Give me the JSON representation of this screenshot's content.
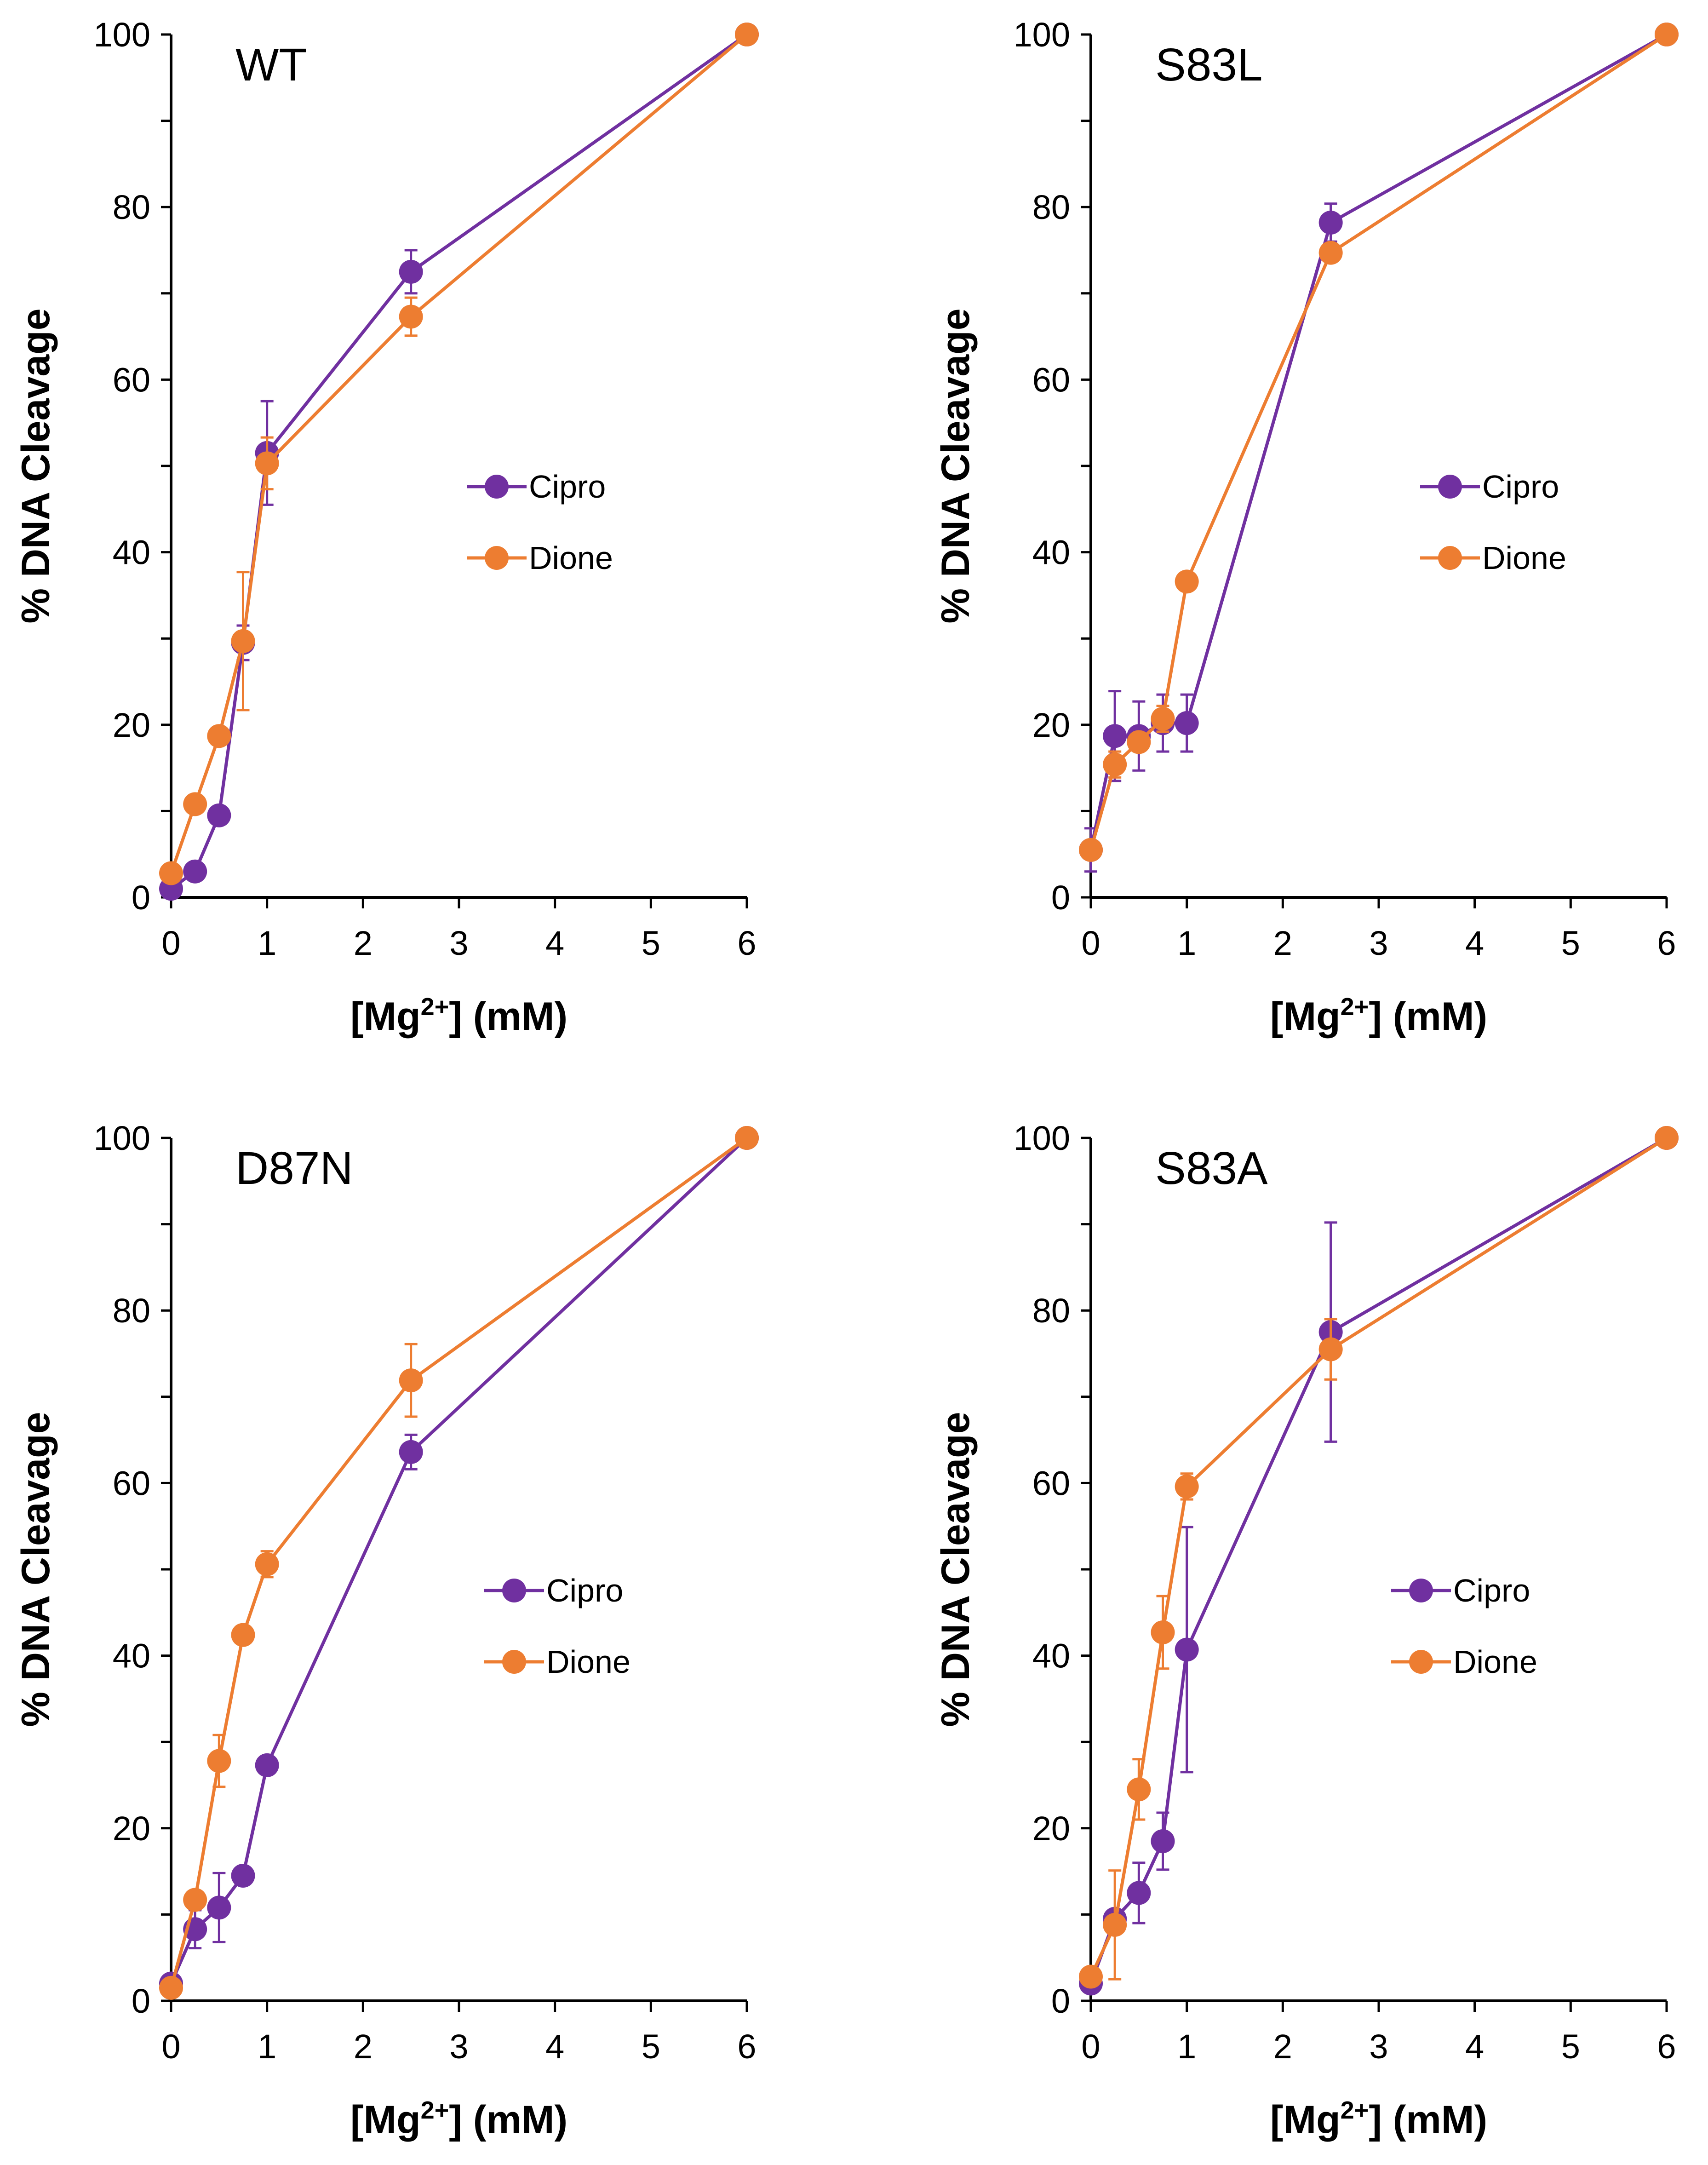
{
  "chart_data": [
    {
      "type": "line",
      "title": "WT",
      "xlabel": "[Mg2+] (mM)",
      "ylabel": "% DNA Cleavage",
      "xlim": [
        0,
        6
      ],
      "ylim": [
        0,
        100
      ],
      "xticks": [
        "0",
        "1",
        "2",
        "3",
        "4",
        "5",
        "6"
      ],
      "yticks": [
        "0",
        "20",
        "40",
        "60",
        "80",
        "100"
      ],
      "legend_position": "center-right",
      "series": [
        {
          "name": "Cipro",
          "color": "#7030A0",
          "x": [
            0,
            0.25,
            0.5,
            0.75,
            1,
            2.5,
            6
          ],
          "y": [
            1,
            3,
            9.5,
            29.5,
            51.5,
            72.5,
            100
          ],
          "err": [
            0,
            0,
            0,
            2,
            6,
            2.5,
            0
          ]
        },
        {
          "name": "Dione",
          "color": "#ED7D31",
          "x": [
            0,
            0.25,
            0.5,
            0.75,
            1,
            2.5,
            6
          ],
          "y": [
            2.8,
            10.8,
            18.7,
            29.7,
            50.3,
            67.3,
            100
          ],
          "err": [
            0,
            0,
            0,
            8,
            3,
            2.2,
            0
          ]
        }
      ]
    },
    {
      "type": "line",
      "title": "S83L",
      "xlabel": "[Mg2+] (mM)",
      "ylabel": "% DNA Cleavage",
      "xlim": [
        0,
        6
      ],
      "ylim": [
        0,
        100
      ],
      "xticks": [
        "0",
        "1",
        "2",
        "3",
        "4",
        "5",
        "6"
      ],
      "yticks": [
        "0",
        "20",
        "40",
        "60",
        "80",
        "100"
      ],
      "legend_position": "center-right",
      "series": [
        {
          "name": "Cipro",
          "color": "#7030A0",
          "x": [
            0,
            0.25,
            0.5,
            0.75,
            1,
            2.5,
            6
          ],
          "y": [
            5.5,
            18.7,
            18.7,
            20.2,
            20.2,
            78.2,
            100
          ],
          "err": [
            2.5,
            5.2,
            4,
            3.3,
            3.3,
            2.2,
            0
          ]
        },
        {
          "name": "Dione",
          "color": "#ED7D31",
          "x": [
            0,
            0.25,
            0.5,
            0.75,
            1,
            2.5,
            6
          ],
          "y": [
            5.5,
            15.4,
            18,
            20.7,
            36.6,
            74.7,
            100
          ],
          "err": [
            0,
            1.5,
            0,
            1.5,
            0,
            0,
            0
          ]
        }
      ]
    },
    {
      "type": "line",
      "title": "D87N",
      "xlabel": "[Mg2+] (mM)",
      "ylabel": "% DNA Cleavage",
      "xlim": [
        0,
        6
      ],
      "ylim": [
        0,
        100
      ],
      "xticks": [
        "0",
        "1",
        "2",
        "3",
        "4",
        "5",
        "6"
      ],
      "yticks": [
        "0",
        "20",
        "40",
        "60",
        "80",
        "100"
      ],
      "legend_position": "center-right",
      "series": [
        {
          "name": "Cipro",
          "color": "#7030A0",
          "x": [
            0,
            0.25,
            0.5,
            0.75,
            1,
            2.5,
            6
          ],
          "y": [
            2,
            8.3,
            10.8,
            14.5,
            27.3,
            63.6,
            100
          ],
          "err": [
            0,
            2.2,
            4,
            0,
            0,
            2,
            0
          ]
        },
        {
          "name": "Dione",
          "color": "#ED7D31",
          "x": [
            0,
            0.25,
            0.5,
            0.75,
            1,
            2.5,
            6
          ],
          "y": [
            1.5,
            11.7,
            27.8,
            42.4,
            50.6,
            71.9,
            100
          ],
          "err": [
            0,
            0,
            3,
            0,
            1.5,
            4.2,
            0
          ]
        }
      ]
    },
    {
      "type": "line",
      "title": "S83A",
      "xlabel": "[Mg2+] (mM)",
      "ylabel": "% DNA Cleavage",
      "xlim": [
        0,
        6
      ],
      "ylim": [
        0,
        100
      ],
      "xticks": [
        "0",
        "1",
        "2",
        "3",
        "4",
        "5",
        "6"
      ],
      "yticks": [
        "0",
        "20",
        "40",
        "60",
        "80",
        "100"
      ],
      "legend_position": "center-right",
      "series": [
        {
          "name": "Cipro",
          "color": "#7030A0",
          "x": [
            0,
            0.25,
            0.5,
            0.75,
            1,
            2.5,
            6
          ],
          "y": [
            2,
            9.5,
            12.5,
            18.5,
            40.7,
            77.5,
            100
          ],
          "err": [
            0,
            0,
            3.5,
            3.3,
            14.2,
            12.7,
            0
          ]
        },
        {
          "name": "Dione",
          "color": "#ED7D31",
          "x": [
            0,
            0.25,
            0.5,
            0.75,
            1,
            2.5,
            6
          ],
          "y": [
            2.8,
            8.8,
            24.5,
            42.7,
            59.6,
            75.5,
            100
          ],
          "err": [
            0,
            6.3,
            3.5,
            4.2,
            1.5,
            3.5,
            0
          ]
        }
      ]
    }
  ]
}
